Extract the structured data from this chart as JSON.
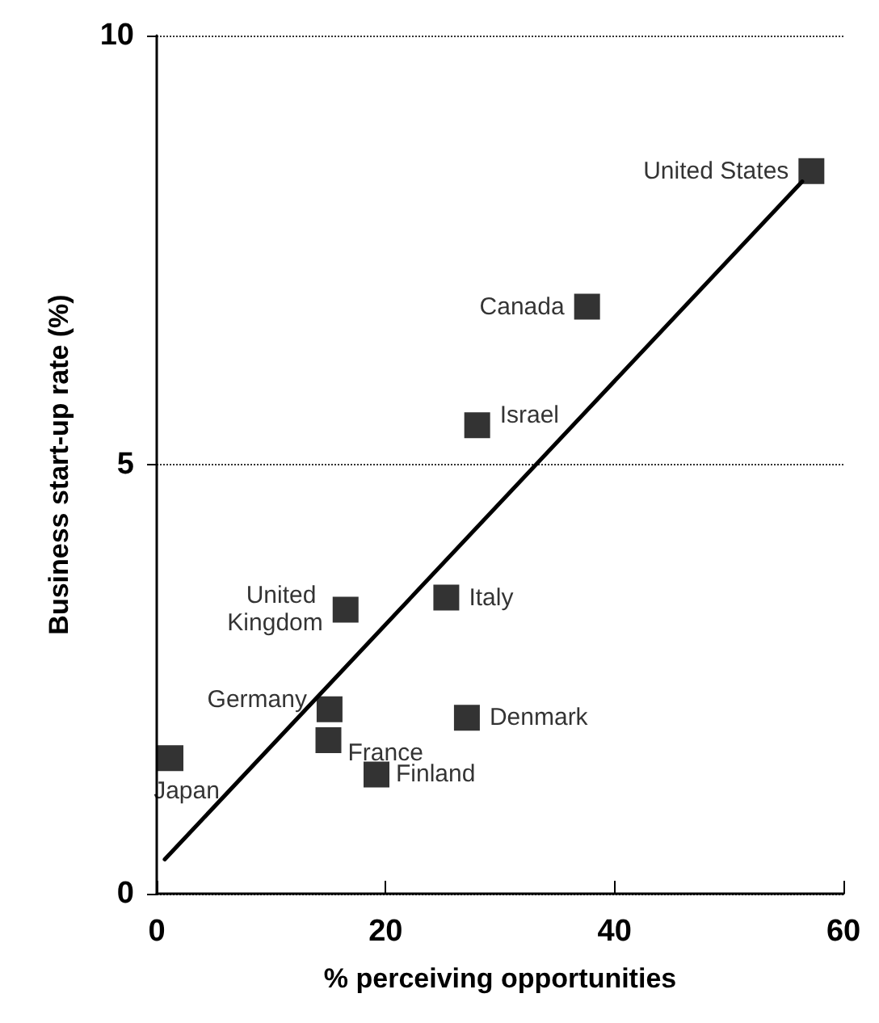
{
  "chart_data": {
    "type": "scatter",
    "xlabel": "% perceiving opportunities",
    "ylabel": "Business start-up rate (%)",
    "x": [
      57.2,
      37.6,
      28.0,
      16.5,
      25.3,
      15.1,
      15.0,
      27.1,
      19.2,
      1.2
    ],
    "series": [
      {
        "color": "#000000",
        "values": [
          8.42,
          6.84,
          5.46,
          3.31,
          3.45,
          2.15,
          1.79,
          2.05,
          1.39,
          1.58
        ]
      },
      {
        "type": "line",
        "color": "#000000",
        "x": [
          0.7,
          56.4
        ],
        "values": [
          0.4,
          8.3
        ],
        "marker": "none"
      }
    ],
    "annotations": [
      "United States",
      "Canada",
      "Israel",
      "United Kingdom",
      "Italy",
      "Germany",
      "France",
      "Denmark",
      "Finland",
      "Japan"
    ],
    "xlim": [
      0,
      60
    ],
    "xticks": [
      0,
      20,
      40,
      60
    ],
    "ylim": [
      0,
      10
    ],
    "yticks": [
      0,
      5,
      10
    ],
    "grid": "y",
    "marker": "square",
    "line_style": "solid"
  }
}
